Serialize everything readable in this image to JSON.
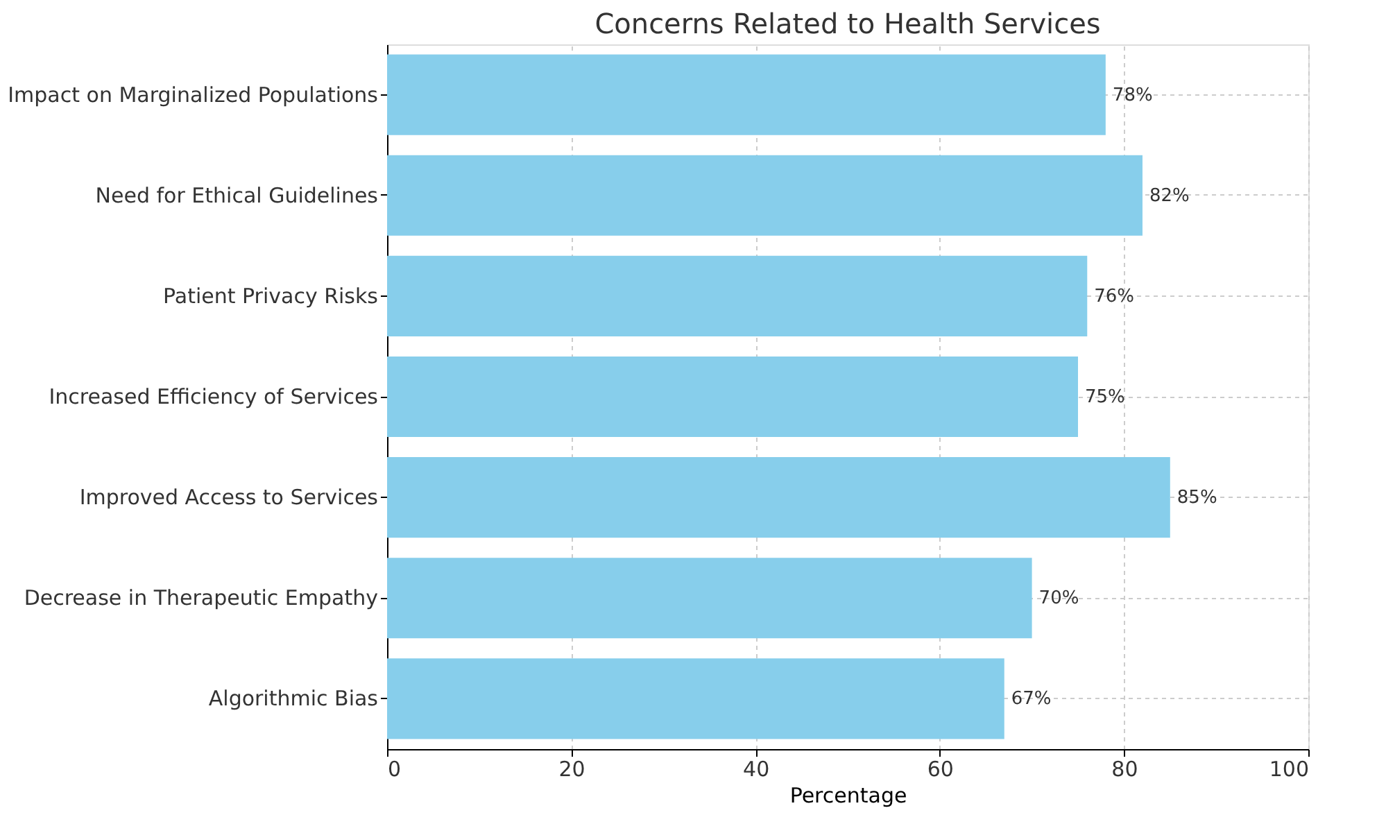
{
  "chart_data": {
    "type": "bar",
    "orientation": "horizontal",
    "title": "Concerns Related to Health Services",
    "xlabel": "Percentage",
    "categories": [
      "Impact on Marginalized Populations",
      "Need for Ethical Guidelines",
      "Patient Privacy Risks",
      "Increased Efficiency of Services",
      "Improved Access to Services",
      "Decrease in Therapeutic Empathy",
      "Algorithmic Bias"
    ],
    "values": [
      78,
      82,
      76,
      75,
      85,
      70,
      67
    ],
    "value_labels": [
      "78%",
      "82%",
      "76%",
      "75%",
      "85%",
      "70%",
      "67%"
    ],
    "color": "#87ceeb",
    "xlim": [
      0,
      100
    ],
    "xticks": [
      0,
      20,
      40,
      60,
      80,
      100
    ],
    "grid": true
  }
}
